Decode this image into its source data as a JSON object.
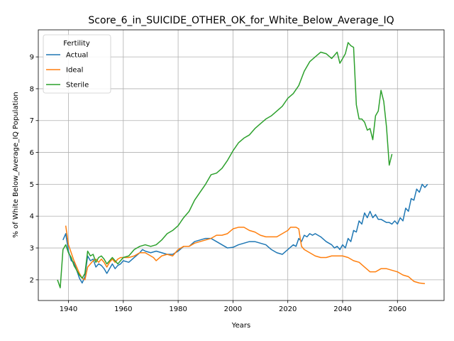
{
  "chart_data": {
    "type": "line",
    "title": "Score_6_in_SUICIDE_OTHER_OK_for_White_Below_Average_IQ",
    "xlabel": "Years",
    "ylabel": "% of White Below_Average_IQ Population",
    "xlim": [
      1929,
      2077
    ],
    "ylim": [
      1.35,
      9.85
    ],
    "xticks": [
      1940,
      1960,
      1980,
      2000,
      2020,
      2040,
      2060
    ],
    "yticks": [
      2,
      3,
      4,
      5,
      6,
      7,
      8,
      9
    ],
    "grid": true,
    "legend": {
      "title": "Fertility",
      "position": "upper left",
      "labels": [
        "Actual",
        "Ideal",
        "Sterile"
      ]
    },
    "colors": [
      "#1f77b4",
      "#ff7f0e",
      "#2ca02c"
    ],
    "series": [
      {
        "name": "Actual",
        "points": [
          [
            1938,
            3.25
          ],
          [
            1939,
            3.45
          ],
          [
            1940,
            2.9
          ],
          [
            1941,
            2.6
          ],
          [
            1942,
            2.55
          ],
          [
            1943,
            2.3
          ],
          [
            1944,
            2.05
          ],
          [
            1945,
            1.9
          ],
          [
            1946,
            2.1
          ],
          [
            1947,
            2.75
          ],
          [
            1948,
            2.6
          ],
          [
            1949,
            2.65
          ],
          [
            1950,
            2.4
          ],
          [
            1951,
            2.5
          ],
          [
            1952,
            2.45
          ],
          [
            1953,
            2.35
          ],
          [
            1954,
            2.2
          ],
          [
            1955,
            2.35
          ],
          [
            1956,
            2.5
          ],
          [
            1957,
            2.35
          ],
          [
            1958,
            2.45
          ],
          [
            1959,
            2.5
          ],
          [
            1960,
            2.6
          ],
          [
            1962,
            2.55
          ],
          [
            1964,
            2.7
          ],
          [
            1966,
            2.85
          ],
          [
            1967,
            2.95
          ],
          [
            1968,
            2.9
          ],
          [
            1970,
            2.85
          ],
          [
            1972,
            2.9
          ],
          [
            1974,
            2.85
          ],
          [
            1976,
            2.8
          ],
          [
            1978,
            2.8
          ],
          [
            1980,
            2.9
          ],
          [
            1982,
            3.05
          ],
          [
            1984,
            3.05
          ],
          [
            1986,
            3.2
          ],
          [
            1988,
            3.25
          ],
          [
            1990,
            3.3
          ],
          [
            1992,
            3.3
          ],
          [
            1994,
            3.2
          ],
          [
            1996,
            3.1
          ],
          [
            1998,
            3.0
          ],
          [
            2000,
            3.02
          ],
          [
            2002,
            3.1
          ],
          [
            2004,
            3.15
          ],
          [
            2006,
            3.2
          ],
          [
            2008,
            3.2
          ],
          [
            2010,
            3.15
          ],
          [
            2012,
            3.1
          ],
          [
            2014,
            2.95
          ],
          [
            2016,
            2.85
          ],
          [
            2018,
            2.8
          ],
          [
            2020,
            2.95
          ],
          [
            2022,
            3.1
          ],
          [
            2023,
            3.05
          ],
          [
            2024,
            3.3
          ],
          [
            2025,
            3.2
          ],
          [
            2026,
            3.4
          ],
          [
            2027,
            3.35
          ],
          [
            2028,
            3.45
          ],
          [
            2029,
            3.4
          ],
          [
            2030,
            3.45
          ],
          [
            2032,
            3.35
          ],
          [
            2034,
            3.2
          ],
          [
            2036,
            3.1
          ],
          [
            2037,
            3.0
          ],
          [
            2038,
            3.05
          ],
          [
            2039,
            2.95
          ],
          [
            2040,
            3.1
          ],
          [
            2041,
            3.0
          ],
          [
            2042,
            3.3
          ],
          [
            2043,
            3.2
          ],
          [
            2044,
            3.55
          ],
          [
            2045,
            3.5
          ],
          [
            2046,
            3.85
          ],
          [
            2047,
            3.75
          ],
          [
            2048,
            4.1
          ],
          [
            2049,
            3.95
          ],
          [
            2050,
            4.15
          ],
          [
            2051,
            3.95
          ],
          [
            2052,
            4.05
          ],
          [
            2053,
            3.9
          ],
          [
            2054,
            3.9
          ],
          [
            2055,
            3.85
          ],
          [
            2056,
            3.8
          ],
          [
            2057,
            3.8
          ],
          [
            2058,
            3.75
          ],
          [
            2059,
            3.85
          ],
          [
            2060,
            3.75
          ],
          [
            2061,
            3.95
          ],
          [
            2062,
            3.85
          ],
          [
            2063,
            4.25
          ],
          [
            2064,
            4.15
          ],
          [
            2065,
            4.55
          ],
          [
            2066,
            4.5
          ],
          [
            2067,
            4.85
          ],
          [
            2068,
            4.75
          ],
          [
            2069,
            5.0
          ],
          [
            2070,
            4.9
          ],
          [
            2071,
            5.0
          ]
        ]
      },
      {
        "name": "Ideal",
        "points": [
          [
            1939,
            3.7
          ],
          [
            1940,
            3.1
          ],
          [
            1941,
            2.85
          ],
          [
            1942,
            2.6
          ],
          [
            1943,
            2.4
          ],
          [
            1944,
            2.2
          ],
          [
            1945,
            2.05
          ],
          [
            1946,
            2.0
          ],
          [
            1947,
            2.4
          ],
          [
            1948,
            2.5
          ],
          [
            1949,
            2.6
          ],
          [
            1950,
            2.65
          ],
          [
            1951,
            2.55
          ],
          [
            1952,
            2.65
          ],
          [
            1953,
            2.55
          ],
          [
            1954,
            2.4
          ],
          [
            1955,
            2.55
          ],
          [
            1956,
            2.65
          ],
          [
            1957,
            2.55
          ],
          [
            1958,
            2.65
          ],
          [
            1959,
            2.7
          ],
          [
            1960,
            2.7
          ],
          [
            1962,
            2.7
          ],
          [
            1964,
            2.75
          ],
          [
            1966,
            2.85
          ],
          [
            1968,
            2.85
          ],
          [
            1970,
            2.75
          ],
          [
            1971,
            2.7
          ],
          [
            1972,
            2.6
          ],
          [
            1974,
            2.75
          ],
          [
            1976,
            2.8
          ],
          [
            1978,
            2.75
          ],
          [
            1980,
            2.95
          ],
          [
            1982,
            3.05
          ],
          [
            1984,
            3.05
          ],
          [
            1986,
            3.15
          ],
          [
            1988,
            3.2
          ],
          [
            1990,
            3.25
          ],
          [
            1992,
            3.3
          ],
          [
            1994,
            3.4
          ],
          [
            1996,
            3.4
          ],
          [
            1998,
            3.45
          ],
          [
            2000,
            3.6
          ],
          [
            2002,
            3.65
          ],
          [
            2004,
            3.65
          ],
          [
            2006,
            3.55
          ],
          [
            2008,
            3.5
          ],
          [
            2010,
            3.4
          ],
          [
            2012,
            3.35
          ],
          [
            2014,
            3.35
          ],
          [
            2016,
            3.35
          ],
          [
            2018,
            3.45
          ],
          [
            2020,
            3.55
          ],
          [
            2021,
            3.65
          ],
          [
            2022,
            3.65
          ],
          [
            2023,
            3.65
          ],
          [
            2024,
            3.6
          ],
          [
            2025,
            3.05
          ],
          [
            2026,
            2.95
          ],
          [
            2028,
            2.85
          ],
          [
            2030,
            2.75
          ],
          [
            2032,
            2.7
          ],
          [
            2034,
            2.7
          ],
          [
            2036,
            2.75
          ],
          [
            2038,
            2.75
          ],
          [
            2040,
            2.75
          ],
          [
            2042,
            2.7
          ],
          [
            2044,
            2.6
          ],
          [
            2046,
            2.55
          ],
          [
            2048,
            2.4
          ],
          [
            2050,
            2.25
          ],
          [
            2052,
            2.25
          ],
          [
            2054,
            2.35
          ],
          [
            2056,
            2.35
          ],
          [
            2058,
            2.3
          ],
          [
            2060,
            2.25
          ],
          [
            2062,
            2.15
          ],
          [
            2064,
            2.1
          ],
          [
            2066,
            1.95
          ],
          [
            2068,
            1.9
          ],
          [
            2070,
            1.88
          ]
        ]
      },
      {
        "name": "Sterile",
        "points": [
          [
            1936,
            2.0
          ],
          [
            1937,
            1.75
          ],
          [
            1938,
            2.95
          ],
          [
            1939,
            3.1
          ],
          [
            1940,
            2.85
          ],
          [
            1941,
            2.7
          ],
          [
            1942,
            2.45
          ],
          [
            1943,
            2.3
          ],
          [
            1944,
            2.15
          ],
          [
            1945,
            2.05
          ],
          [
            1946,
            2.2
          ],
          [
            1947,
            2.9
          ],
          [
            1948,
            2.75
          ],
          [
            1949,
            2.8
          ],
          [
            1950,
            2.55
          ],
          [
            1951,
            2.7
          ],
          [
            1952,
            2.75
          ],
          [
            1953,
            2.65
          ],
          [
            1954,
            2.5
          ],
          [
            1955,
            2.6
          ],
          [
            1956,
            2.7
          ],
          [
            1957,
            2.6
          ],
          [
            1958,
            2.5
          ],
          [
            1959,
            2.6
          ],
          [
            1960,
            2.7
          ],
          [
            1962,
            2.75
          ],
          [
            1964,
            2.95
          ],
          [
            1966,
            3.05
          ],
          [
            1968,
            3.1
          ],
          [
            1970,
            3.05
          ],
          [
            1972,
            3.1
          ],
          [
            1974,
            3.25
          ],
          [
            1976,
            3.45
          ],
          [
            1978,
            3.55
          ],
          [
            1980,
            3.7
          ],
          [
            1982,
            3.95
          ],
          [
            1984,
            4.15
          ],
          [
            1986,
            4.5
          ],
          [
            1988,
            4.75
          ],
          [
            1990,
            5.0
          ],
          [
            1992,
            5.3
          ],
          [
            1994,
            5.35
          ],
          [
            1996,
            5.5
          ],
          [
            1998,
            5.75
          ],
          [
            2000,
            6.05
          ],
          [
            2002,
            6.3
          ],
          [
            2004,
            6.45
          ],
          [
            2006,
            6.55
          ],
          [
            2008,
            6.75
          ],
          [
            2010,
            6.9
          ],
          [
            2012,
            7.05
          ],
          [
            2014,
            7.15
          ],
          [
            2016,
            7.3
          ],
          [
            2018,
            7.45
          ],
          [
            2020,
            7.7
          ],
          [
            2022,
            7.85
          ],
          [
            2024,
            8.1
          ],
          [
            2026,
            8.55
          ],
          [
            2028,
            8.85
          ],
          [
            2030,
            9.0
          ],
          [
            2032,
            9.15
          ],
          [
            2034,
            9.1
          ],
          [
            2036,
            8.95
          ],
          [
            2038,
            9.15
          ],
          [
            2039,
            8.8
          ],
          [
            2040,
            8.95
          ],
          [
            2041,
            9.1
          ],
          [
            2042,
            9.45
          ],
          [
            2043,
            9.35
          ],
          [
            2044,
            9.3
          ],
          [
            2045,
            7.5
          ],
          [
            2046,
            7.05
          ],
          [
            2047,
            7.05
          ],
          [
            2048,
            6.95
          ],
          [
            2049,
            6.7
          ],
          [
            2050,
            6.75
          ],
          [
            2051,
            6.4
          ],
          [
            2052,
            7.15
          ],
          [
            2053,
            7.3
          ],
          [
            2054,
            7.95
          ],
          [
            2055,
            7.6
          ],
          [
            2056,
            6.8
          ],
          [
            2057,
            5.6
          ],
          [
            2058,
            5.95
          ]
        ]
      }
    ]
  }
}
